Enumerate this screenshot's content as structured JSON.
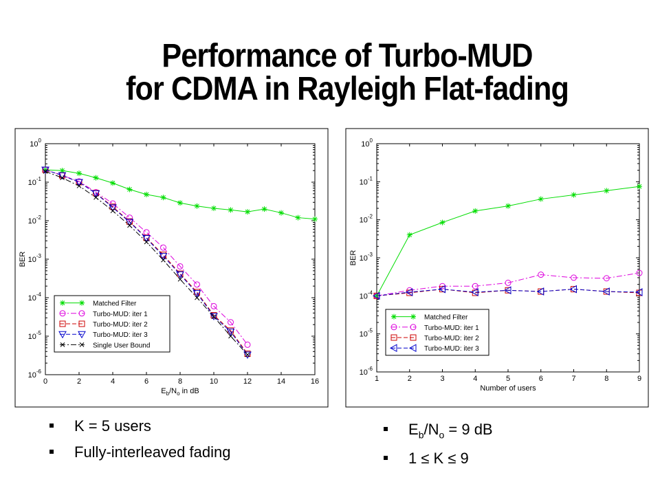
{
  "slide": {
    "title_line1": "Performance of Turbo-MUD",
    "title_line2": "for CDMA in Rayleigh Flat-fading"
  },
  "bullets_left": [
    "K = 5 users",
    "Fully-interleaved fading"
  ],
  "bullets_right": {
    "ebno_E": "E",
    "ebno_b": "b",
    "ebno_slash": "/N",
    "ebno_o": "o",
    "ebno_rest": " = 9 dB",
    "k_range": "1 ≤ K ≤ 9"
  },
  "colors": {
    "matched_filter": "#00dd00",
    "iter1": "#dd00dd",
    "iter2": "#cc0000",
    "iter3": "#0000cc",
    "bound": "#000000"
  },
  "chart_data": [
    {
      "type": "line",
      "xlabel_parts": [
        "E",
        "b",
        "/N",
        "o",
        " in dB"
      ],
      "ylabel": "BER",
      "y_scale": "log",
      "xlim": [
        0,
        16
      ],
      "ylim_exp": [
        -6,
        0
      ],
      "xticks": [
        0,
        2,
        4,
        6,
        8,
        10,
        12,
        14,
        16
      ],
      "yticks_exp": [
        0,
        -1,
        -2,
        -3,
        -4,
        -5,
        -6
      ],
      "legend_position": "bottom-left",
      "grid": false,
      "series": [
        {
          "name": "Matched Filter",
          "color": "#00dd00",
          "marker": "star",
          "dash": "",
          "x": [
            0,
            1,
            2,
            3,
            4,
            5,
            6,
            7,
            8,
            9,
            10,
            11,
            12,
            13,
            14,
            15,
            16
          ],
          "y": [
            0.21,
            0.2,
            0.17,
            0.13,
            0.095,
            0.065,
            0.048,
            0.04,
            0.029,
            0.024,
            0.021,
            0.019,
            0.017,
            0.02,
            0.016,
            0.012,
            0.011
          ]
        },
        {
          "name": "Turbo-MUD: iter 1",
          "color": "#dd00dd",
          "marker": "circle",
          "dash": "8,3,2,3",
          "x": [
            0,
            1,
            2,
            3,
            4,
            5,
            6,
            7,
            8,
            9,
            10,
            11,
            12
          ],
          "y": [
            0.21,
            0.15,
            0.105,
            0.055,
            0.028,
            0.012,
            0.005,
            0.002,
            0.00065,
            0.00022,
            6e-05,
            2.3e-05,
            6e-06
          ]
        },
        {
          "name": "Turbo-MUD: iter 2",
          "color": "#cc0000",
          "marker": "square",
          "dash": "6,3",
          "x": [
            0,
            1,
            2,
            3,
            4,
            5,
            6,
            7,
            8,
            9,
            10,
            11,
            12
          ],
          "y": [
            0.21,
            0.15,
            0.1,
            0.052,
            0.023,
            0.0095,
            0.0036,
            0.0013,
            0.00042,
            0.00014,
            3.5e-05,
            1.4e-05,
            3.5e-06
          ]
        },
        {
          "name": "Turbo-MUD: iter 3",
          "color": "#0000cc",
          "marker": "triangle-down",
          "dash": "6,3",
          "x": [
            0,
            1,
            2,
            3,
            4,
            5,
            6,
            7,
            8,
            9,
            10,
            11,
            12
          ],
          "y": [
            0.21,
            0.15,
            0.1,
            0.051,
            0.022,
            0.0092,
            0.0035,
            0.0012,
            0.0004,
            0.00013,
            3.3e-05,
            1.3e-05,
            3.3e-06
          ]
        },
        {
          "name": "Single User Bound",
          "color": "#000000",
          "marker": "x",
          "dash": "8,3,2,3",
          "x": [
            0,
            1,
            2,
            3,
            4,
            5,
            6,
            7,
            8,
            9,
            10,
            11,
            12
          ],
          "y": [
            0.19,
            0.13,
            0.08,
            0.04,
            0.018,
            0.0075,
            0.0028,
            0.00095,
            0.0003,
            0.0001,
            3.2e-05,
            1e-05,
            3.3e-06
          ]
        }
      ]
    },
    {
      "type": "line",
      "xlabel": "Number of users",
      "ylabel": "BER",
      "y_scale": "log",
      "xlim": [
        1,
        9
      ],
      "ylim_exp": [
        -6,
        0
      ],
      "xticks": [
        1,
        2,
        3,
        4,
        5,
        6,
        7,
        8,
        9
      ],
      "yticks_exp": [
        0,
        -1,
        -2,
        -3,
        -4,
        -5,
        -6
      ],
      "legend_position": "bottom-left",
      "grid": false,
      "series": [
        {
          "name": "Matched Filter",
          "color": "#00dd00",
          "marker": "star",
          "dash": "",
          "x": [
            1,
            2,
            3,
            4,
            5,
            6,
            7,
            8,
            9
          ],
          "y": [
            0.0001,
            0.004,
            0.0085,
            0.017,
            0.023,
            0.035,
            0.045,
            0.058,
            0.075
          ]
        },
        {
          "name": "Turbo-MUD: iter 1",
          "color": "#dd00dd",
          "marker": "circle",
          "dash": "8,3,2,3",
          "x": [
            1,
            2,
            3,
            4,
            5,
            6,
            7,
            8,
            9
          ],
          "y": [
            0.0001,
            0.00014,
            0.00018,
            0.00018,
            0.00022,
            0.00036,
            0.0003,
            0.00029,
            0.0004
          ]
        },
        {
          "name": "Turbo-MUD: iter 2",
          "color": "#cc0000",
          "marker": "square",
          "dash": "6,3",
          "x": [
            1,
            2,
            3,
            4,
            5,
            6,
            7,
            8,
            9
          ],
          "y": [
            0.0001,
            0.00012,
            0.00015,
            0.00012,
            0.00014,
            0.00013,
            0.00015,
            0.00013,
            0.00012
          ]
        },
        {
          "name": "Turbo-MUD: iter 3",
          "color": "#0000cc",
          "marker": "triangle-left",
          "dash": "6,3",
          "x": [
            1,
            2,
            3,
            4,
            5,
            6,
            7,
            8,
            9
          ],
          "y": [
            0.0001,
            0.000125,
            0.00015,
            0.000125,
            0.00014,
            0.00013,
            0.00015,
            0.00013,
            0.000125
          ]
        }
      ]
    }
  ]
}
